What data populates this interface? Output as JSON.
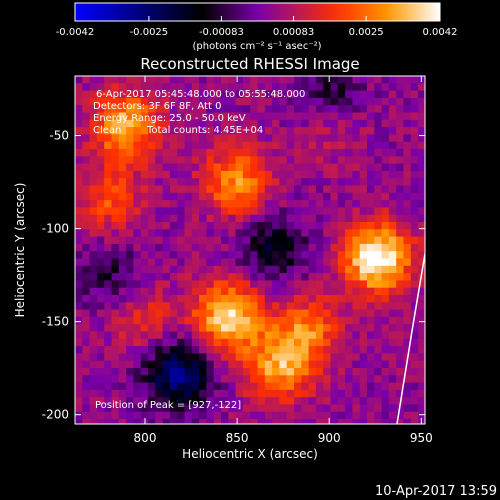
{
  "chart_data": {
    "type": "heatmap",
    "title": "Reconstructed RHESSI Image",
    "xlabel": "Heliocentric X (arcsec)",
    "ylabel": "Heliocentric Y (arcsec)",
    "xlim": [
      762,
      952
    ],
    "ylim": [
      -205,
      -18
    ],
    "x_ticks": [
      800,
      850,
      900,
      950
    ],
    "y_ticks": [
      -50,
      -100,
      -150,
      -200
    ],
    "colorbar": {
      "range": [
        -0.0042,
        0.0042
      ],
      "ticks": [
        "-0.0042",
        "-0.0025",
        "-0.00083",
        "0.00083",
        "0.0025",
        "0.0042"
      ],
      "unit_label": "(photons cm⁻² s⁻¹ asec⁻²)",
      "colormap": [
        "#0000ff",
        "#000000",
        "#7a00a8",
        "#ff3000",
        "#ff9a00",
        "#ffffff"
      ]
    },
    "annotations": {
      "time_range": "6-Apr-2017 05:45:48.000 to 05:55:48.000",
      "detectors": "Detectors: 3F 6F 8F, Att 0",
      "energy": "Energy Range: 25.0 - 50.0 keV",
      "method": "Clean",
      "counts": "Total counts: 4.45E+04",
      "peak": "Position of Peak = [927,-122]"
    },
    "sources": [
      {
        "x": 926,
        "y": -116,
        "value": 0.0042
      },
      {
        "x": 845,
        "y": -147,
        "value": 0.0036
      },
      {
        "x": 790,
        "y": -45,
        "value": 0.003
      },
      {
        "x": 850,
        "y": -75,
        "value": 0.0026
      },
      {
        "x": 872,
        "y": -175,
        "value": 0.0027
      },
      {
        "x": 888,
        "y": -155,
        "value": 0.0022
      },
      {
        "x": 780,
        "y": -85,
        "value": 0.0017
      },
      {
        "x": 800,
        "y": -150,
        "value": 0.0012
      },
      {
        "x": 900,
        "y": -45,
        "value": 0.001
      },
      {
        "x": 818,
        "y": -178,
        "value": -0.003
      },
      {
        "x": 870,
        "y": -110,
        "value": -0.0018
      },
      {
        "x": 900,
        "y": -30,
        "value": -0.0015
      },
      {
        "x": 780,
        "y": -125,
        "value": -0.0012
      }
    ]
  },
  "footer": {
    "timestamp": "10-Apr-2017 13:59"
  }
}
